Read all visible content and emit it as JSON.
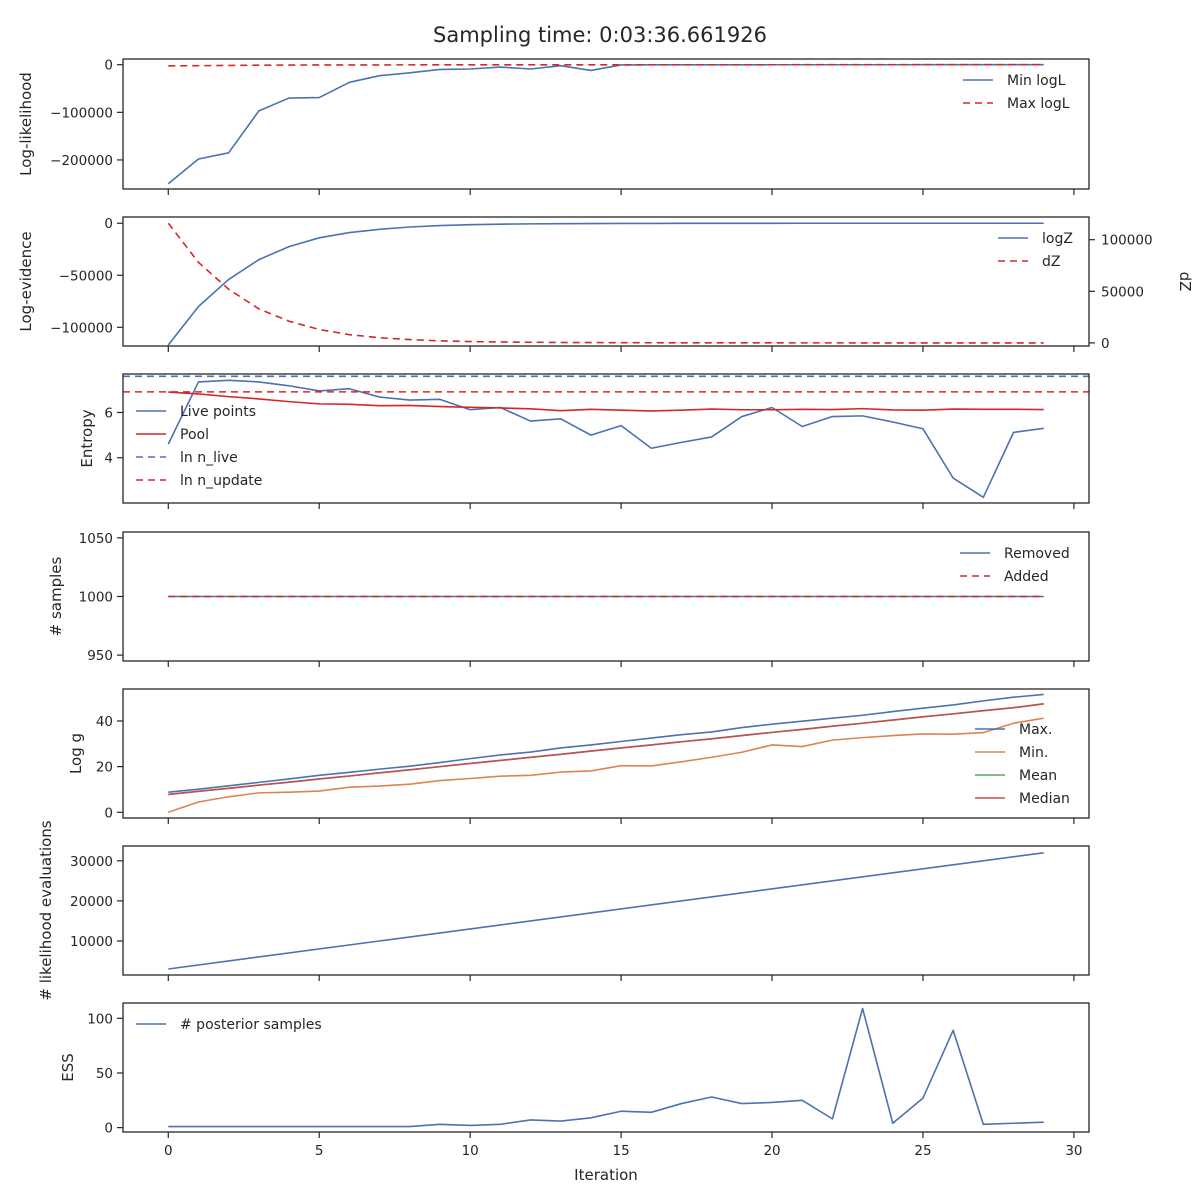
{
  "title": "Sampling time: 0:03:36.661926",
  "x_axis": {
    "label": "Iteration",
    "range": [
      -1.5,
      30.5
    ],
    "ticks": [
      0,
      5,
      10,
      15,
      20,
      25,
      30
    ],
    "tick_labels": [
      "0",
      "5",
      "10",
      "15",
      "20",
      "25",
      "30"
    ]
  },
  "colors": {
    "blue": "#4c72b0",
    "orange": "#dd8452",
    "green": "#55a868",
    "red": "#c44e52",
    "bright_red": "#d62728",
    "axis": "#262626"
  },
  "chart_data": [
    {
      "type": "line",
      "ylabel": "Log-likelihood",
      "ylim": [
        -261000,
        12000
      ],
      "yticks": [
        0,
        -100000,
        -200000
      ],
      "ytick_labels": [
        "0",
        "−100000",
        "−200000"
      ],
      "legend": "top-right",
      "series": [
        {
          "name": "Min logL",
          "color": "#4c72b0",
          "dash": "",
          "x": [
            0,
            1,
            2,
            3,
            4,
            5,
            6,
            7,
            8,
            9,
            10,
            11,
            12,
            13,
            14,
            15,
            16,
            17,
            18,
            19,
            20,
            21,
            22,
            23,
            24,
            25,
            26,
            27,
            28,
            29
          ],
          "values": [
            -250000,
            -198000,
            -185000,
            -97000,
            -70000,
            -69000,
            -37000,
            -23000,
            -17000,
            -10000,
            -9000,
            -5000,
            -9000,
            -2000,
            -12000,
            -500,
            -300,
            -200,
            -200,
            -150,
            -100,
            -100,
            -80,
            -60,
            -50,
            -40,
            -30,
            -20,
            -10,
            0
          ]
        },
        {
          "name": "Max logL",
          "color": "#d62728",
          "dash": "7,5",
          "x": [
            0,
            3,
            5,
            10,
            15,
            20,
            25,
            29
          ],
          "values": [
            -2500,
            -1000,
            -500,
            -200,
            -100,
            -50,
            -20,
            0
          ]
        }
      ]
    },
    {
      "type": "line",
      "ylabel": "Log-evidence",
      "ylabel_right": "dZ",
      "ylim": [
        -118000,
        6000
      ],
      "ylim_right": [
        -3000,
        122000
      ],
      "yticks": [
        0,
        -50000,
        -100000
      ],
      "ytick_labels": [
        "0",
        "−50000",
        "−100000"
      ],
      "yticks_right": [
        100000,
        50000,
        0
      ],
      "ytick_labels_right": [
        "100000",
        "50000",
        "0"
      ],
      "legend": "top-right",
      "series": [
        {
          "name": "logZ",
          "color": "#4c72b0",
          "dash": "",
          "axis": "left",
          "x": [
            0,
            1,
            2,
            3,
            4,
            5,
            6,
            7,
            8,
            9,
            10,
            11,
            12,
            13,
            14,
            15,
            16,
            17,
            18,
            19,
            20,
            21,
            22,
            23,
            24,
            25,
            26,
            27,
            28,
            29
          ],
          "values": [
            -117000,
            -80000,
            -54000,
            -35000,
            -22500,
            -14000,
            -9000,
            -5800,
            -3600,
            -2200,
            -1400,
            -900,
            -600,
            -400,
            -300,
            -200,
            -150,
            -100,
            -70,
            -50,
            -30,
            -20,
            -15,
            -10,
            -5,
            -3,
            -2,
            -1,
            0,
            0
          ]
        },
        {
          "name": "dZ",
          "color": "#d62728",
          "dash": "7,5",
          "axis": "right",
          "x": [
            0,
            1,
            2,
            3,
            4,
            5,
            6,
            7,
            8,
            9,
            10,
            11,
            12,
            13,
            14,
            15,
            16,
            17,
            18,
            19,
            20,
            21,
            22,
            23,
            24,
            25,
            26,
            27,
            28,
            29
          ],
          "values": [
            116000,
            78000,
            52000,
            33000,
            21000,
            13000,
            8000,
            5000,
            3200,
            2000,
            1300,
            900,
            600,
            400,
            300,
            200,
            150,
            100,
            80,
            60,
            40,
            30,
            20,
            15,
            10,
            7,
            5,
            3,
            2,
            1
          ]
        }
      ]
    },
    {
      "type": "line",
      "ylabel": "Entropy",
      "ylim": [
        2.0,
        7.7
      ],
      "yticks": [
        6,
        4
      ],
      "ytick_labels": [
        "6",
        "4"
      ],
      "legend": "left",
      "series": [
        {
          "name": "Live points",
          "color": "#4c72b0",
          "dash": "",
          "x": [
            0,
            1,
            2,
            3,
            4,
            5,
            6,
            7,
            8,
            9,
            10,
            11,
            12,
            13,
            14,
            15,
            16,
            17,
            18,
            19,
            20,
            21,
            22,
            23,
            24,
            25,
            26,
            27,
            28,
            29
          ],
          "values": [
            4.6,
            7.35,
            7.42,
            7.35,
            7.18,
            6.95,
            7.05,
            6.68,
            6.55,
            6.58,
            6.12,
            6.22,
            5.62,
            5.72,
            5.0,
            5.42,
            4.42,
            4.68,
            4.92,
            5.82,
            6.22,
            5.38,
            5.82,
            5.85,
            5.58,
            5.28,
            3.1,
            2.25,
            5.12,
            5.3
          ]
        },
        {
          "name": "Pool",
          "color": "#d62728",
          "dash": "",
          "x": [
            0,
            1,
            2,
            3,
            4,
            5,
            6,
            7,
            8,
            9,
            10,
            11,
            12,
            13,
            14,
            15,
            16,
            17,
            18,
            19,
            20,
            21,
            22,
            23,
            24,
            25,
            26,
            27,
            28,
            29
          ],
          "values": [
            6.9,
            6.82,
            6.7,
            6.6,
            6.48,
            6.38,
            6.36,
            6.3,
            6.31,
            6.26,
            6.23,
            6.2,
            6.16,
            6.08,
            6.14,
            6.1,
            6.07,
            6.1,
            6.15,
            6.12,
            6.12,
            6.14,
            6.13,
            6.17,
            6.11,
            6.1,
            6.15,
            6.14,
            6.14,
            6.13
          ]
        },
        {
          "name": "ln n_live",
          "color": "#4c72b0",
          "dash": "7,5",
          "hline": 7.6
        },
        {
          "name": "ln n_update",
          "color": "#d62728",
          "dash": "7,5",
          "hline": 6.91
        }
      ]
    },
    {
      "type": "line",
      "ylabel": "# samples",
      "ylim": [
        945,
        1055
      ],
      "yticks": [
        1050,
        1000,
        950
      ],
      "ytick_labels": [
        "1050",
        "1000",
        "950"
      ],
      "legend": "top-right",
      "series": [
        {
          "name": "Removed",
          "color": "#4c72b0",
          "dash": "",
          "x": [
            0,
            29
          ],
          "values": [
            1000,
            1000
          ]
        },
        {
          "name": "Added",
          "color": "#d62728",
          "dash": "7,5",
          "x": [
            0,
            29
          ],
          "values": [
            1000,
            1000
          ]
        }
      ]
    },
    {
      "type": "line",
      "ylabel": "Log g",
      "ylim": [
        -2.5,
        54
      ],
      "yticks": [
        40,
        20,
        0
      ],
      "ytick_labels": [
        "40",
        "20",
        "0"
      ],
      "legend": "right",
      "series": [
        {
          "name": "Max.",
          "color": "#4c72b0",
          "dash": "",
          "x": [
            0,
            1,
            2,
            3,
            4,
            5,
            6,
            7,
            8,
            9,
            10,
            11,
            12,
            13,
            14,
            15,
            16,
            17,
            18,
            19,
            20,
            21,
            22,
            23,
            24,
            25,
            26,
            27,
            28,
            29
          ],
          "values": [
            8.8,
            10.1,
            11.6,
            13.1,
            14.6,
            16.2,
            17.5,
            18.9,
            20.2,
            21.8,
            23.5,
            25.1,
            26.4,
            28.2,
            29.5,
            31.0,
            32.5,
            34.0,
            35.2,
            37.1,
            38.6,
            39.9,
            41.2,
            42.5,
            44.1,
            45.6,
            47.0,
            48.8,
            50.4,
            51.6
          ]
        },
        {
          "name": "Min.",
          "color": "#dd8452",
          "dash": "",
          "x": [
            0,
            1,
            2,
            3,
            4,
            5,
            6,
            7,
            8,
            9,
            10,
            11,
            12,
            13,
            14,
            15,
            16,
            17,
            18,
            19,
            20,
            21,
            22,
            23,
            24,
            25,
            26,
            27,
            28,
            29
          ],
          "values": [
            0,
            4.5,
            6.8,
            8.5,
            8.8,
            9.3,
            11.0,
            11.5,
            12.3,
            13.9,
            14.8,
            15.8,
            16.2,
            17.6,
            18.1,
            20.4,
            20.3,
            22.1,
            24.1,
            26.3,
            29.5,
            28.8,
            31.6,
            32.7,
            33.6,
            34.3,
            34.2,
            34.9,
            39.0,
            41.2
          ]
        },
        {
          "name": "Mean",
          "color": "#55a868",
          "dash": "",
          "x": [
            0,
            1,
            2,
            3,
            4,
            5,
            6,
            7,
            8,
            9,
            10,
            11,
            12,
            13,
            14,
            15,
            16,
            17,
            18,
            19,
            20,
            21,
            22,
            23,
            24,
            25,
            26,
            27,
            28,
            29
          ],
          "values": [
            7.8,
            9.2,
            10.5,
            11.9,
            13.2,
            14.6,
            15.9,
            17.3,
            18.6,
            20.0,
            21.4,
            22.7,
            24.1,
            25.4,
            26.8,
            28.2,
            29.5,
            30.9,
            32.2,
            33.6,
            35.0,
            36.3,
            37.7,
            39.0,
            40.4,
            41.8,
            43.1,
            44.5,
            45.8,
            47.5
          ]
        },
        {
          "name": "Median",
          "color": "#c44e52",
          "dash": "",
          "x": [
            0,
            1,
            2,
            3,
            4,
            5,
            6,
            7,
            8,
            9,
            10,
            11,
            12,
            13,
            14,
            15,
            16,
            17,
            18,
            19,
            20,
            21,
            22,
            23,
            24,
            25,
            26,
            27,
            28,
            29
          ],
          "values": [
            7.8,
            9.2,
            10.5,
            11.9,
            13.2,
            14.6,
            15.9,
            17.3,
            18.6,
            20.0,
            21.4,
            22.7,
            24.1,
            25.4,
            26.8,
            28.2,
            29.5,
            30.9,
            32.2,
            33.6,
            35.0,
            36.3,
            37.7,
            39.0,
            40.4,
            41.8,
            43.1,
            44.5,
            45.8,
            47.5
          ]
        }
      ]
    },
    {
      "type": "line",
      "ylabel": "# likelihood evaluations",
      "ylim": [
        1500,
        33700
      ],
      "yticks": [
        30000,
        20000,
        10000
      ],
      "ytick_labels": [
        "30000",
        "20000",
        "10000"
      ],
      "legend": "none",
      "series": [
        {
          "name": "",
          "color": "#4c72b0",
          "dash": "",
          "x": [
            0,
            29
          ],
          "values": [
            3000,
            32000
          ]
        }
      ]
    },
    {
      "type": "line",
      "ylabel": "ESS",
      "ylim": [
        -4,
        114
      ],
      "yticks": [
        100,
        50,
        0
      ],
      "ytick_labels": [
        "100",
        "50",
        "0"
      ],
      "legend": "top-left",
      "series": [
        {
          "name": "# posterior samples",
          "color": "#4c72b0",
          "dash": "",
          "x": [
            0,
            1,
            2,
            3,
            4,
            5,
            6,
            7,
            8,
            9,
            10,
            11,
            12,
            13,
            14,
            15,
            16,
            17,
            18,
            19,
            20,
            21,
            22,
            23,
            24,
            25,
            26,
            27,
            28,
            29
          ],
          "values": [
            1,
            1,
            1,
            1,
            1,
            1,
            1,
            1,
            1,
            3,
            2,
            3,
            7,
            6,
            9,
            15,
            14,
            22,
            28,
            22,
            23,
            25,
            8,
            109,
            4,
            27,
            89,
            3,
            4,
            5
          ]
        }
      ]
    }
  ]
}
